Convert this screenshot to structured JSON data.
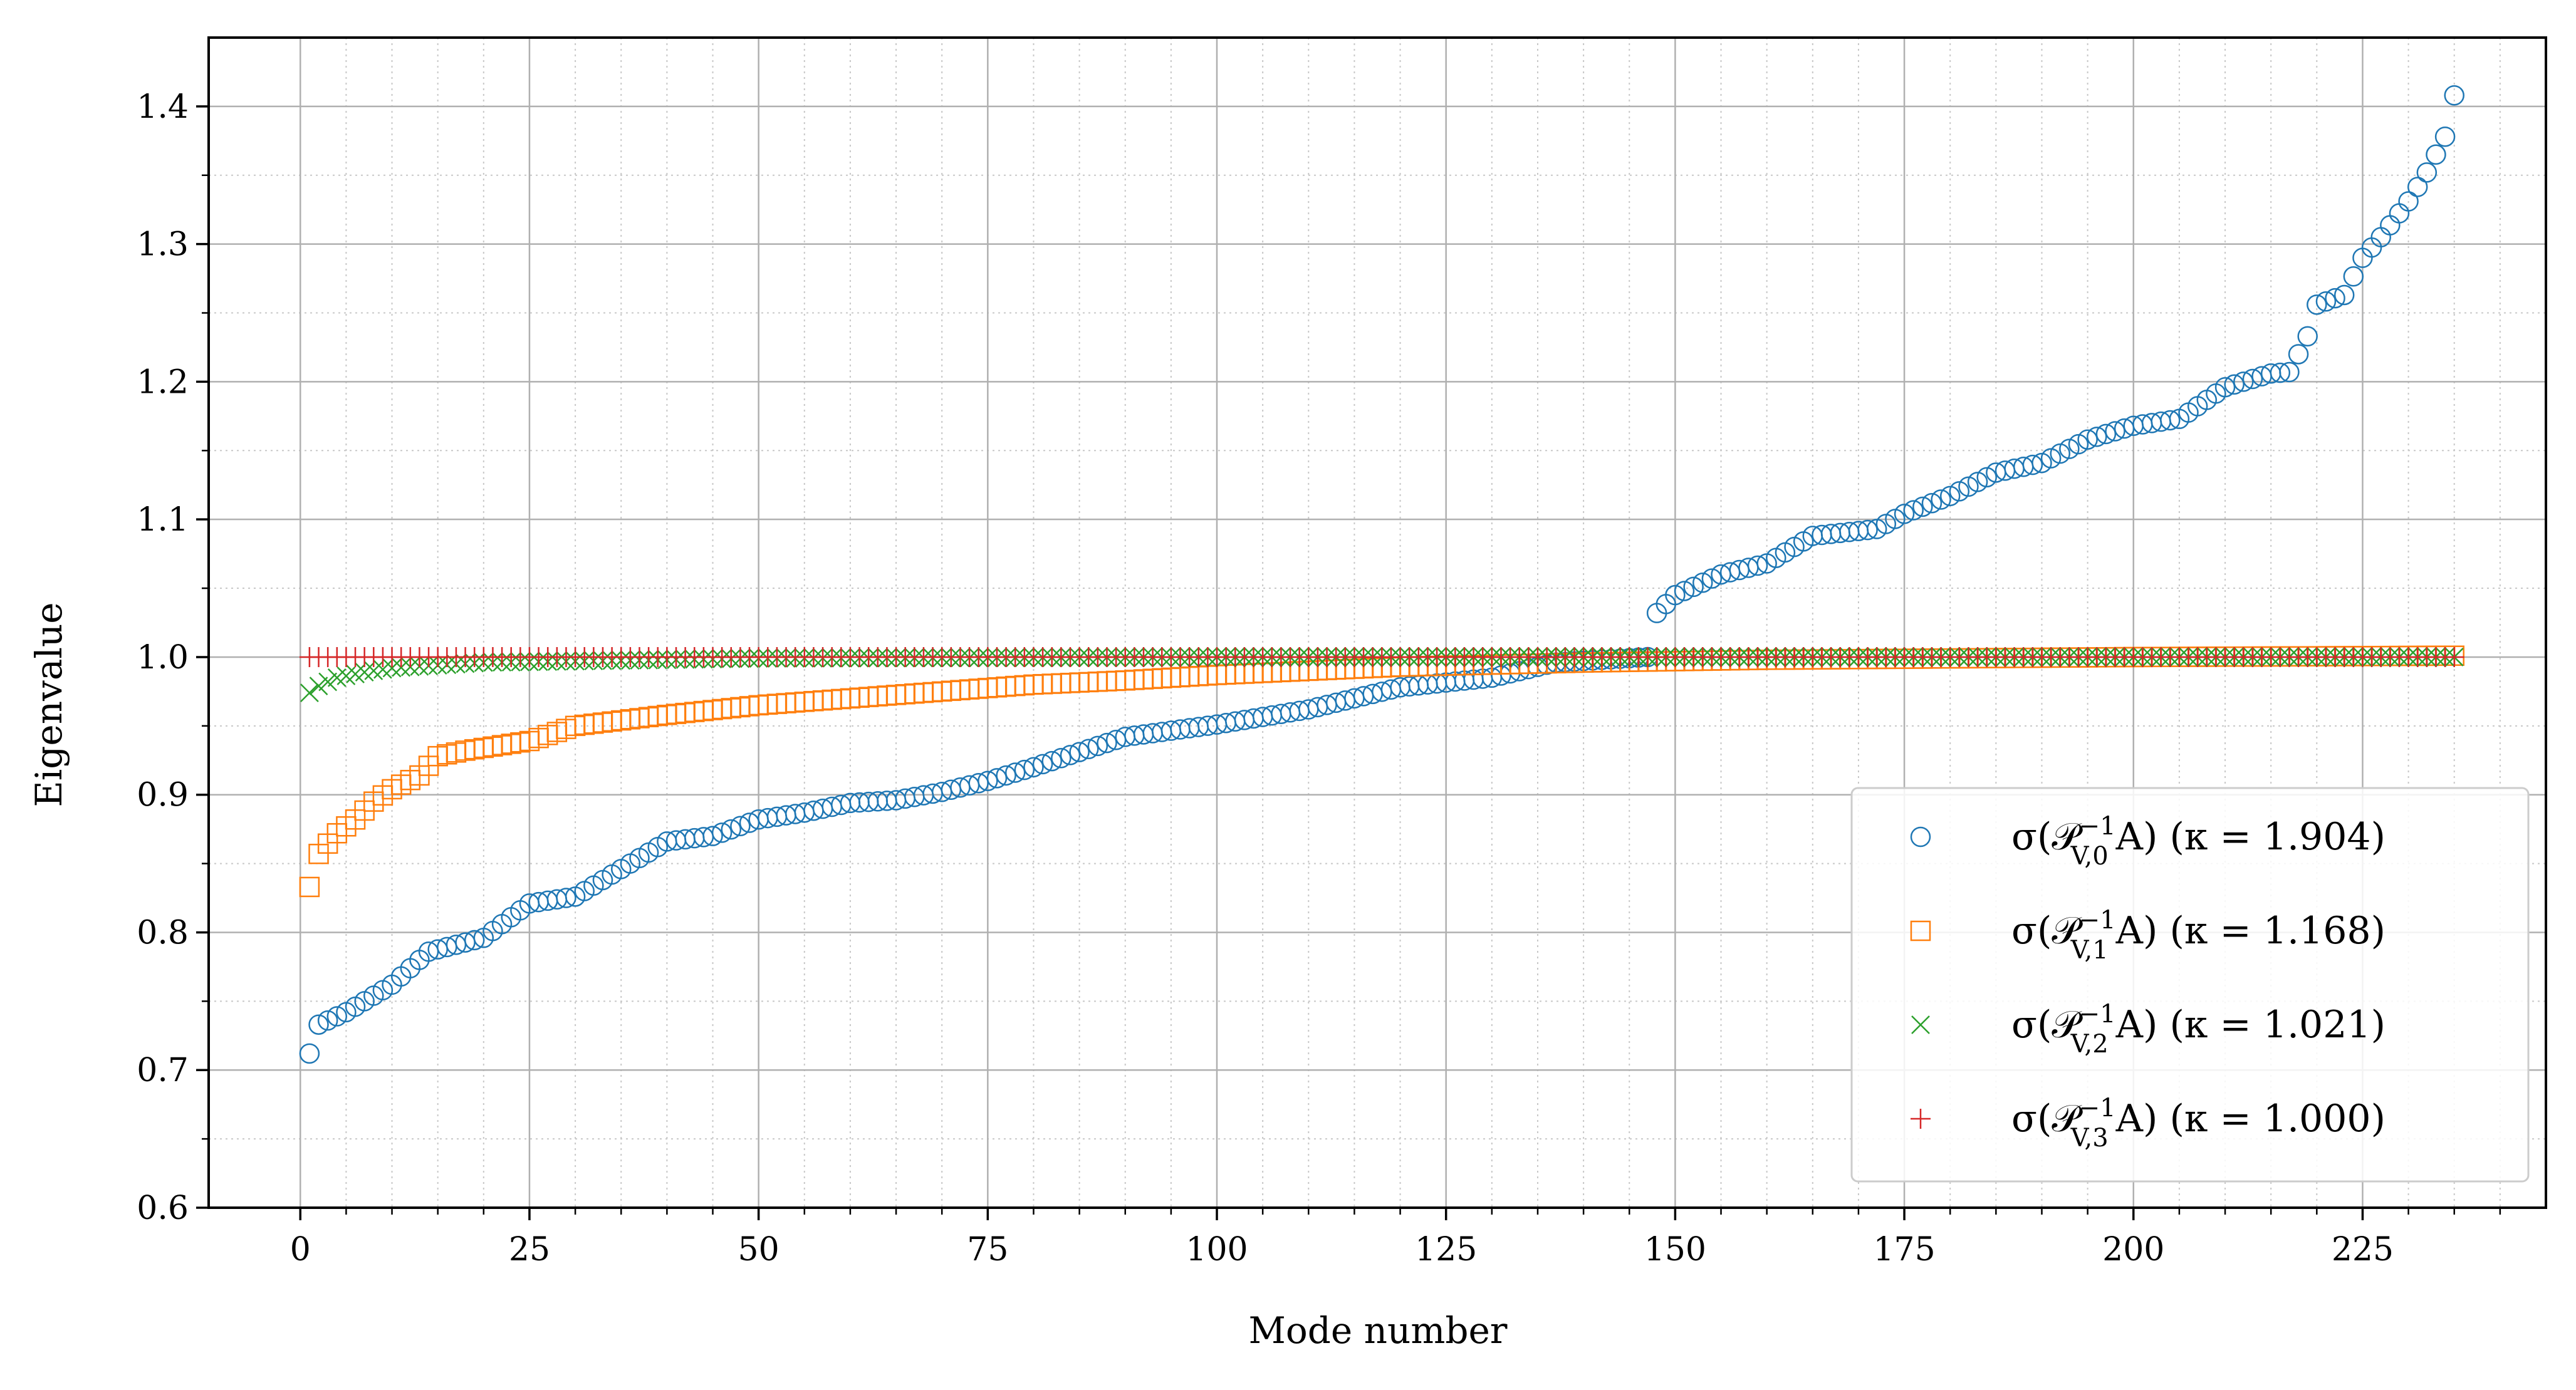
{
  "chart_data": {
    "type": "scatter",
    "title": "",
    "xlabel": "Mode number",
    "ylabel": "Eigenvalue",
    "xlim": [
      -10,
      245
    ],
    "ylim": [
      0.6,
      1.45
    ],
    "x_ticks": [
      0,
      25,
      50,
      75,
      100,
      125,
      150,
      175,
      200,
      225
    ],
    "y_ticks": [
      0.6,
      0.7,
      0.8,
      0.9,
      1.0,
      1.1,
      1.2,
      1.3,
      1.4
    ],
    "x_tick_labels": [
      "0",
      "25",
      "50",
      "75",
      "100",
      "125",
      "150",
      "175",
      "200",
      "225"
    ],
    "y_tick_labels": [
      "0.6",
      "0.7",
      "0.8",
      "0.9",
      "1.0",
      "1.1",
      "1.2",
      "1.3",
      "1.4"
    ],
    "grid": true,
    "minor_grid": true,
    "legend_position": "bottom-right",
    "x": {
      "start": 1,
      "end": 235
    },
    "series": [
      {
        "name": "σ(P_{V,0}^{-1} A) (κ = 1.904)",
        "legend_main": "σ(𝒫",
        "legend_sup": "−1",
        "legend_sub": "V,0",
        "legend_rest": "A) (κ = 1.904)",
        "marker": "circle",
        "color": "#1f77b4",
        "anchors": [
          [
            1,
            0.712
          ],
          [
            2,
            0.733
          ],
          [
            5,
            0.742
          ],
          [
            10,
            0.762
          ],
          [
            14,
            0.786
          ],
          [
            20,
            0.796
          ],
          [
            25,
            0.821
          ],
          [
            30,
            0.826
          ],
          [
            35,
            0.846
          ],
          [
            40,
            0.866
          ],
          [
            45,
            0.87
          ],
          [
            50,
            0.882
          ],
          [
            55,
            0.887
          ],
          [
            60,
            0.894
          ],
          [
            65,
            0.896
          ],
          [
            70,
            0.902
          ],
          [
            75,
            0.91
          ],
          [
            80,
            0.92
          ],
          [
            85,
            0.931
          ],
          [
            90,
            0.942
          ],
          [
            100,
            0.951
          ],
          [
            110,
            0.962
          ],
          [
            120,
            0.978
          ],
          [
            130,
            0.985
          ],
          [
            137,
            0.996
          ],
          [
            147,
            1.0
          ],
          [
            148,
            1.032
          ],
          [
            150,
            1.045
          ],
          [
            155,
            1.06
          ],
          [
            160,
            1.068
          ],
          [
            165,
            1.088
          ],
          [
            172,
            1.093
          ],
          [
            175,
            1.104
          ],
          [
            180,
            1.117
          ],
          [
            185,
            1.134
          ],
          [
            190,
            1.141
          ],
          [
            195,
            1.158
          ],
          [
            200,
            1.168
          ],
          [
            205,
            1.173
          ],
          [
            210,
            1.196
          ],
          [
            215,
            1.206
          ],
          [
            217,
            1.207
          ],
          [
            219,
            1.233
          ],
          [
            220,
            1.256
          ],
          [
            223,
            1.263
          ],
          [
            225,
            1.29
          ],
          [
            227,
            1.305
          ],
          [
            230,
            1.331
          ],
          [
            232,
            1.352
          ],
          [
            234,
            1.378
          ],
          [
            235,
            1.408
          ]
        ]
      },
      {
        "name": "σ(P_{V,1}^{-1} A) (κ = 1.168)",
        "legend_main": "σ(𝒫",
        "legend_sup": "−1",
        "legend_sub": "V,1",
        "legend_rest": "A) (κ = 1.168)",
        "marker": "square",
        "color": "#ff7f0e",
        "anchors": [
          [
            1,
            0.833
          ],
          [
            2,
            0.857
          ],
          [
            4,
            0.872
          ],
          [
            6,
            0.882
          ],
          [
            8,
            0.895
          ],
          [
            10,
            0.904
          ],
          [
            13,
            0.914
          ],
          [
            15,
            0.928
          ],
          [
            18,
            0.932
          ],
          [
            25,
            0.939
          ],
          [
            30,
            0.95
          ],
          [
            40,
            0.958
          ],
          [
            50,
            0.965
          ],
          [
            60,
            0.97
          ],
          [
            70,
            0.975
          ],
          [
            80,
            0.98
          ],
          [
            90,
            0.983
          ],
          [
            100,
            0.987
          ],
          [
            120,
            0.993
          ],
          [
            140,
            0.996
          ],
          [
            160,
            0.998
          ],
          [
            180,
            0.999
          ],
          [
            200,
            1.0
          ],
          [
            235,
            1.001
          ]
        ]
      },
      {
        "name": "σ(P_{V,2}^{-1} A) (κ = 1.021)",
        "legend_main": "σ(𝒫",
        "legend_sup": "−1",
        "legend_sub": "V,2",
        "legend_rest": "A) (κ = 1.021)",
        "marker": "x",
        "color": "#2ca02c",
        "anchors": [
          [
            1,
            0.974
          ],
          [
            2,
            0.979
          ],
          [
            4,
            0.985
          ],
          [
            7,
            0.989
          ],
          [
            10,
            0.992
          ],
          [
            15,
            0.994
          ],
          [
            20,
            0.996
          ],
          [
            30,
            0.997
          ],
          [
            50,
            0.999
          ],
          [
            100,
            1.0
          ],
          [
            235,
            1.0
          ]
        ]
      },
      {
        "name": "σ(P_{V,3}^{-1} A) (κ = 1.000)",
        "legend_main": "σ(𝒫",
        "legend_sup": "−1",
        "legend_sub": "V,3",
        "legend_rest": "A) (κ = 1.000)",
        "marker": "plus",
        "color": "#d62728",
        "anchors": [
          [
            1,
            1.0
          ],
          [
            235,
            1.0
          ]
        ]
      }
    ]
  }
}
